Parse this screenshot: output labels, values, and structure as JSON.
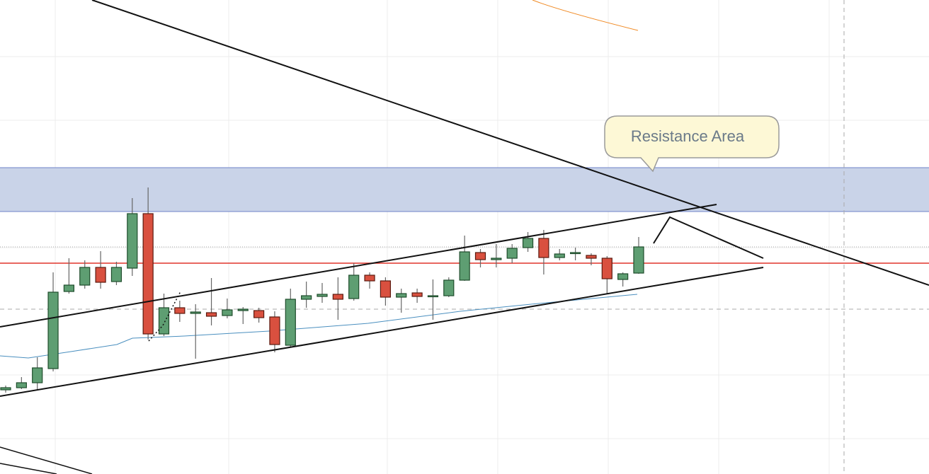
{
  "chart_data": {
    "type": "candlestick",
    "annotation": "Resistance Area",
    "ylim": [
      0,
      670
    ],
    "up_color": "#5e9e72",
    "down_color": "#d9503f",
    "open": [
      119,
      122,
      129,
      149,
      258,
      267,
      292,
      272,
      291,
      368,
      198,
      235,
      227,
      228,
      224,
      231,
      231,
      222,
      182,
      247,
      251,
      254,
      248,
      281,
      273,
      250,
      256,
      251,
      252,
      274,
      313,
      303,
      305,
      320,
      333,
      306,
      312,
      309,
      305,
      275,
      284
    ],
    "high": [
      125,
      137,
      165,
      285,
      305,
      302,
      315,
      300,
      390,
      405,
      255,
      245,
      240,
      277,
      248,
      236,
      235,
      230,
      262,
      272,
      270,
      278,
      298,
      285,
      278,
      262,
      262,
      275,
      278,
      337,
      318,
      325,
      325,
      342,
      345,
      318,
      320,
      312,
      308,
      285,
      335
    ],
    "low": [
      115,
      120,
      118,
      145,
      255,
      262,
      262,
      267,
      280,
      190,
      195,
      215,
      163,
      210,
      220,
      212,
      214,
      172,
      180,
      235,
      242,
      218,
      245,
      262,
      238,
      228,
      242,
      218,
      250,
      273,
      292,
      292,
      298,
      314,
      282,
      302,
      302,
      295,
      255,
      265,
      283
    ],
    "close": [
      122,
      129,
      150,
      257,
      267,
      292,
      271,
      292,
      368,
      198,
      235,
      227,
      229,
      223,
      232,
      233,
      221,
      183,
      247,
      252,
      254,
      247,
      281,
      273,
      250,
      255,
      251,
      252,
      274,
      314,
      303,
      305,
      319,
      333,
      306,
      311,
      313,
      305,
      276,
      283,
      321
    ]
  }
}
